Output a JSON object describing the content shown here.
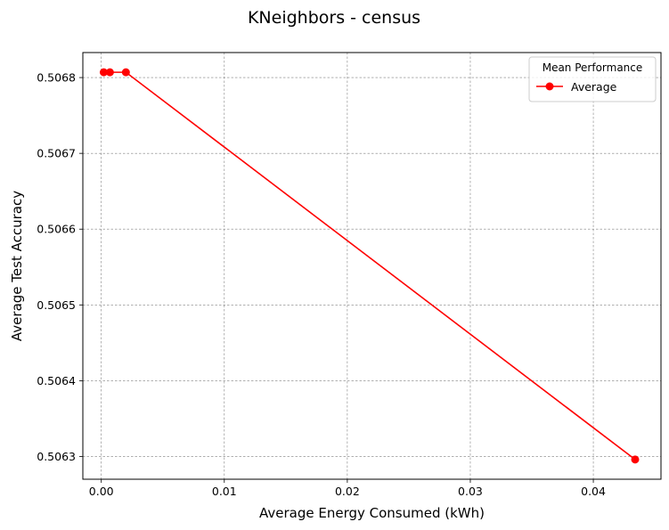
{
  "chart_data": {
    "type": "line",
    "title": "KNeighbors - census",
    "xlabel": "Average Energy Consumed (kWh)",
    "ylabel": "Average Test Accuracy",
    "xlim": [
      -0.0015,
      0.0455
    ],
    "ylim": [
      0.50627,
      0.506833
    ],
    "xticks": [
      0.0,
      0.01,
      0.02,
      0.03,
      0.04
    ],
    "xtick_labels": [
      "0.00",
      "0.01",
      "0.02",
      "0.03",
      "0.04"
    ],
    "yticks": [
      0.5063,
      0.5064,
      0.5065,
      0.5066,
      0.5067,
      0.5068
    ],
    "ytick_labels": [
      "0.5063",
      "0.5064",
      "0.5065",
      "0.5066",
      "0.5067",
      "0.5068"
    ],
    "grid": true,
    "legend": {
      "title": "Mean Performance",
      "placement": "top-right"
    },
    "series": [
      {
        "name": "Average",
        "color": "#ff0000",
        "marker": "circle",
        "x": [
          0.0002,
          0.0007,
          0.002,
          0.0434
        ],
        "y": [
          0.506807,
          0.506807,
          0.506807,
          0.506296
        ]
      }
    ]
  }
}
